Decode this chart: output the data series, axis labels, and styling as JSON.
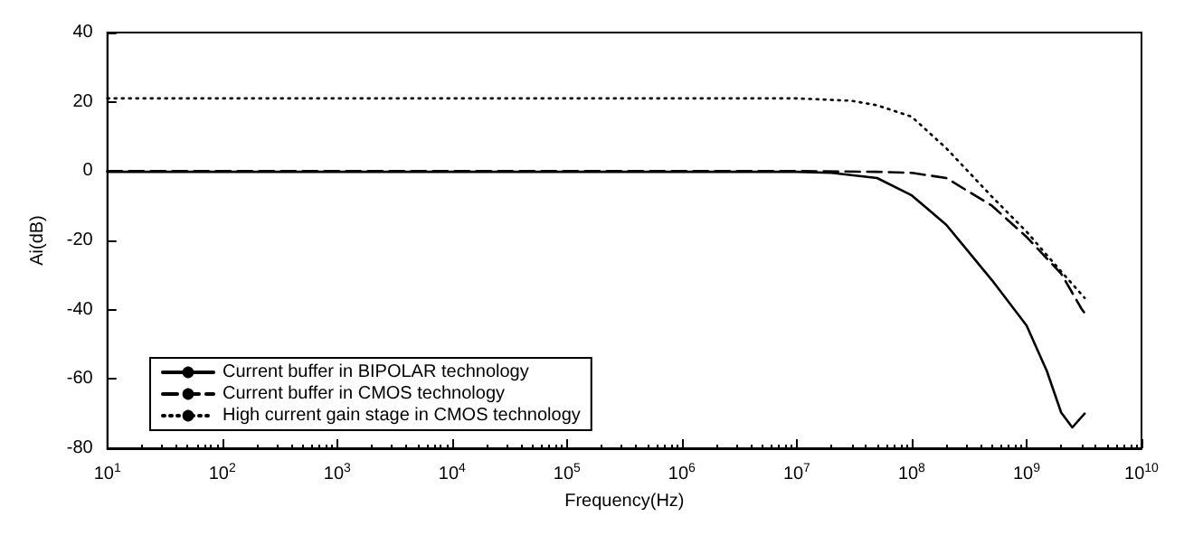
{
  "chart_data": {
    "type": "line",
    "xlabel": "Frequency(Hz)",
    "ylabel": "Ai(dB)",
    "log": "x",
    "grid": false,
    "legend": "bottom left",
    "marker": "none",
    "xlim": [
      10,
      10000000000
    ],
    "xticks": [
      {
        "value": 10,
        "label": "10$^{1}$"
      },
      {
        "value": 100,
        "label": "10$^{2}$"
      },
      {
        "value": 1000,
        "label": "10$^{3}$"
      },
      {
        "value": 10000,
        "label": "10$^{4}$"
      },
      {
        "value": 100000,
        "label": "10$^{5}$"
      },
      {
        "value": 1000000,
        "label": "10$^{6}$"
      },
      {
        "value": 10000000,
        "label": "10$^{7}$"
      },
      {
        "value": 100000000,
        "label": "10$^{8}$"
      },
      {
        "value": 1000000000,
        "label": "10$^{9}$"
      },
      {
        "value": 10000000000,
        "label": "10$^{10}$"
      }
    ],
    "ylim": [
      -80,
      40
    ],
    "yticks": [
      -80,
      -60,
      -40,
      -20,
      0,
      20,
      40
    ],
    "series": [
      {
        "name": "Current buffer in BIPOLAR technology",
        "color": "#000000",
        "line_style": "solid",
        "x": [
          10,
          1000000,
          10000000,
          20000000,
          50000000,
          100000000,
          200000000,
          500000000,
          1000000000,
          1500000000,
          2000000000,
          2500000000,
          3200000000
        ],
        "values": [
          -0.2,
          -0.2,
          -0.2,
          -0.5,
          -2,
          -7,
          -15.5,
          -31.5,
          -44.6,
          -57.7,
          -69.7,
          -74,
          -70
        ]
      },
      {
        "name": "Current buffer in CMOS technology",
        "color": "#000000",
        "line_style": "dashed",
        "x": [
          10,
          1000000,
          10000000,
          50000000,
          100000000,
          200000000,
          500000000,
          1000000000,
          2000000000,
          3000000000,
          3200000000
        ],
        "values": [
          0,
          0,
          0,
          -0.2,
          -0.5,
          -2,
          -10,
          -19,
          -29.6,
          -39.7,
          -41
        ]
      },
      {
        "name": "High current gain stage in CMOS technology",
        "color": "#000000",
        "line_style": "dotted",
        "x": [
          10,
          1000000,
          10000000,
          30000000,
          50000000,
          100000000,
          200000000,
          500000000,
          1000000000,
          2000000000,
          3200000000
        ],
        "values": [
          21,
          21,
          21,
          20.3,
          19,
          15.7,
          6.6,
          -7.4,
          -17.5,
          -29,
          -36.6
        ]
      }
    ]
  }
}
